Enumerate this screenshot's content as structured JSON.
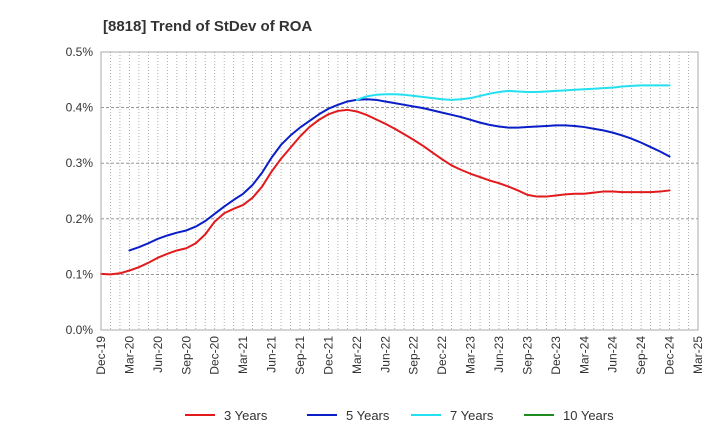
{
  "chart_data": {
    "type": "line",
    "title": "[8818]  Trend of StDev of ROA",
    "xlabel": "",
    "ylabel": "",
    "ylim": [
      0,
      0.5
    ],
    "y_ticks": [
      "0.0%",
      "0.1%",
      "0.2%",
      "0.3%",
      "0.4%",
      "0.5%"
    ],
    "x_ticks": [
      "Dec-19",
      "Mar-20",
      "Jun-20",
      "Sep-20",
      "Dec-20",
      "Mar-21",
      "Jun-21",
      "Sep-21",
      "Dec-21",
      "Mar-22",
      "Jun-22",
      "Sep-22",
      "Dec-22",
      "Mar-23",
      "Jun-23",
      "Sep-23",
      "Dec-23",
      "Mar-24",
      "Jun-24",
      "Sep-24",
      "Dec-24",
      "Mar-25"
    ],
    "grid": true,
    "legend_position": "bottom",
    "series": [
      {
        "name": "3 Years",
        "color": "#e31a1c",
        "points": [
          [
            "Dec-19",
            0.101
          ],
          [
            "Jan-20",
            0.1
          ],
          [
            "Feb-20",
            0.102
          ],
          [
            "Mar-20",
            0.107
          ],
          [
            "Apr-20",
            0.113
          ],
          [
            "May-20",
            0.121
          ],
          [
            "Jun-20",
            0.13
          ],
          [
            "Jul-20",
            0.137
          ],
          [
            "Aug-20",
            0.143
          ],
          [
            "Sep-20",
            0.147
          ],
          [
            "Oct-20",
            0.156
          ],
          [
            "Nov-20",
            0.172
          ],
          [
            "Dec-20",
            0.195
          ],
          [
            "Jan-21",
            0.21
          ],
          [
            "Feb-21",
            0.218
          ],
          [
            "Mar-21",
            0.225
          ],
          [
            "Apr-21",
            0.238
          ],
          [
            "May-21",
            0.258
          ],
          [
            "Jun-21",
            0.285
          ],
          [
            "Jul-21",
            0.308
          ],
          [
            "Aug-21",
            0.328
          ],
          [
            "Sep-21",
            0.348
          ],
          [
            "Oct-21",
            0.365
          ],
          [
            "Nov-21",
            0.378
          ],
          [
            "Dec-21",
            0.388
          ],
          [
            "Jan-22",
            0.394
          ],
          [
            "Feb-22",
            0.396
          ],
          [
            "Mar-22",
            0.393
          ],
          [
            "Apr-22",
            0.387
          ],
          [
            "May-22",
            0.379
          ],
          [
            "Jun-22",
            0.371
          ],
          [
            "Jul-22",
            0.362
          ],
          [
            "Aug-22",
            0.352
          ],
          [
            "Sep-22",
            0.342
          ],
          [
            "Oct-22",
            0.331
          ],
          [
            "Nov-22",
            0.319
          ],
          [
            "Dec-22",
            0.307
          ],
          [
            "Jan-23",
            0.296
          ],
          [
            "Feb-23",
            0.288
          ],
          [
            "Mar-23",
            0.281
          ],
          [
            "Apr-23",
            0.275
          ],
          [
            "May-23",
            0.269
          ],
          [
            "Jun-23",
            0.264
          ],
          [
            "Jul-23",
            0.258
          ],
          [
            "Aug-23",
            0.251
          ],
          [
            "Sep-23",
            0.243
          ],
          [
            "Oct-23",
            0.24
          ],
          [
            "Nov-23",
            0.24
          ],
          [
            "Dec-23",
            0.242
          ],
          [
            "Jan-24",
            0.244
          ],
          [
            "Feb-24",
            0.245
          ],
          [
            "Mar-24",
            0.245
          ],
          [
            "Apr-24",
            0.247
          ],
          [
            "May-24",
            0.249
          ],
          [
            "Jun-24",
            0.249
          ],
          [
            "Jul-24",
            0.248
          ],
          [
            "Aug-24",
            0.248
          ],
          [
            "Sep-24",
            0.248
          ],
          [
            "Oct-24",
            0.248
          ],
          [
            "Nov-24",
            0.249
          ],
          [
            "Dec-24",
            0.251
          ]
        ]
      },
      {
        "name": "5 Years",
        "color": "#0a1ec8",
        "points": [
          [
            "Mar-20",
            0.143
          ],
          [
            "Apr-20",
            0.149
          ],
          [
            "May-20",
            0.156
          ],
          [
            "Jun-20",
            0.164
          ],
          [
            "Jul-20",
            0.17
          ],
          [
            "Aug-20",
            0.175
          ],
          [
            "Sep-20",
            0.179
          ],
          [
            "Oct-20",
            0.186
          ],
          [
            "Nov-20",
            0.196
          ],
          [
            "Dec-20",
            0.209
          ],
          [
            "Jan-21",
            0.222
          ],
          [
            "Feb-21",
            0.234
          ],
          [
            "Mar-21",
            0.245
          ],
          [
            "Apr-21",
            0.261
          ],
          [
            "May-21",
            0.283
          ],
          [
            "Jun-21",
            0.31
          ],
          [
            "Jul-21",
            0.333
          ],
          [
            "Aug-21",
            0.35
          ],
          [
            "Sep-21",
            0.364
          ],
          [
            "Oct-21",
            0.376
          ],
          [
            "Nov-21",
            0.388
          ],
          [
            "Dec-21",
            0.398
          ],
          [
            "Jan-22",
            0.405
          ],
          [
            "Feb-22",
            0.411
          ],
          [
            "Mar-22",
            0.414
          ],
          [
            "Apr-22",
            0.415
          ],
          [
            "May-22",
            0.414
          ],
          [
            "Jun-22",
            0.411
          ],
          [
            "Jul-22",
            0.408
          ],
          [
            "Aug-22",
            0.405
          ],
          [
            "Sep-22",
            0.402
          ],
          [
            "Oct-22",
            0.399
          ],
          [
            "Nov-22",
            0.395
          ],
          [
            "Dec-22",
            0.391
          ],
          [
            "Jan-23",
            0.387
          ],
          [
            "Feb-23",
            0.383
          ],
          [
            "Mar-23",
            0.378
          ],
          [
            "Apr-23",
            0.373
          ],
          [
            "May-23",
            0.369
          ],
          [
            "Jun-23",
            0.366
          ],
          [
            "Jul-23",
            0.364
          ],
          [
            "Aug-23",
            0.364
          ],
          [
            "Sep-23",
            0.365
          ],
          [
            "Oct-23",
            0.366
          ],
          [
            "Nov-23",
            0.367
          ],
          [
            "Dec-23",
            0.368
          ],
          [
            "Jan-24",
            0.368
          ],
          [
            "Feb-24",
            0.367
          ],
          [
            "Mar-24",
            0.365
          ],
          [
            "Apr-24",
            0.362
          ],
          [
            "May-24",
            0.359
          ],
          [
            "Jun-24",
            0.355
          ],
          [
            "Jul-24",
            0.35
          ],
          [
            "Aug-24",
            0.344
          ],
          [
            "Sep-24",
            0.337
          ],
          [
            "Oct-24",
            0.329
          ],
          [
            "Nov-24",
            0.321
          ],
          [
            "Dec-24",
            0.312
          ]
        ]
      },
      {
        "name": "7 Years",
        "color": "#22e0f0",
        "points": [
          [
            "Mar-22",
            0.414
          ],
          [
            "Apr-22",
            0.42
          ],
          [
            "May-22",
            0.423
          ],
          [
            "Jun-22",
            0.424
          ],
          [
            "Jul-22",
            0.424
          ],
          [
            "Aug-22",
            0.423
          ],
          [
            "Sep-22",
            0.421
          ],
          [
            "Oct-22",
            0.419
          ],
          [
            "Nov-22",
            0.417
          ],
          [
            "Dec-22",
            0.415
          ],
          [
            "Jan-23",
            0.414
          ],
          [
            "Feb-23",
            0.415
          ],
          [
            "Mar-23",
            0.417
          ],
          [
            "Apr-23",
            0.421
          ],
          [
            "May-23",
            0.425
          ],
          [
            "Jun-23",
            0.428
          ],
          [
            "Jul-23",
            0.43
          ],
          [
            "Aug-23",
            0.429
          ],
          [
            "Sep-23",
            0.428
          ],
          [
            "Oct-23",
            0.428
          ],
          [
            "Nov-23",
            0.429
          ],
          [
            "Dec-23",
            0.43
          ],
          [
            "Jan-24",
            0.431
          ],
          [
            "Feb-24",
            0.432
          ],
          [
            "Mar-24",
            0.433
          ],
          [
            "Apr-24",
            0.434
          ],
          [
            "May-24",
            0.435
          ],
          [
            "Jun-24",
            0.436
          ],
          [
            "Jul-24",
            0.438
          ],
          [
            "Aug-24",
            0.439
          ],
          [
            "Sep-24",
            0.44
          ],
          [
            "Oct-24",
            0.44
          ],
          [
            "Nov-24",
            0.44
          ],
          [
            "Dec-24",
            0.44
          ]
        ]
      },
      {
        "name": "10 Years",
        "color": "#1e8c1e",
        "points": []
      }
    ]
  }
}
